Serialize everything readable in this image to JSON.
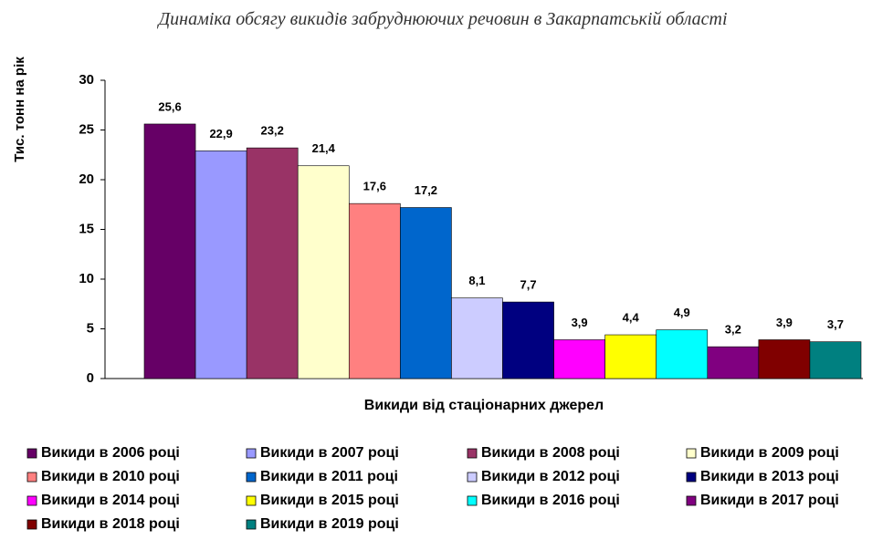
{
  "chart_data": {
    "type": "bar",
    "title": "Динаміка обсягу викидів забруднюючих речовин в Закарпатській області",
    "ylabel": "Тис. тонн на рік",
    "categories": [
      "Викиди від стаціонарних джерел"
    ],
    "ylim": [
      0,
      30
    ],
    "yticks": [
      0,
      5,
      10,
      15,
      20,
      25,
      30
    ],
    "grid": false,
    "series": [
      {
        "name": "Викиди в 2006 році",
        "color": "#660066",
        "values": [
          25.6
        ],
        "value_labels": [
          "25,6"
        ]
      },
      {
        "name": "Викиди в 2007 році",
        "color": "#9999ff",
        "values": [
          22.9
        ],
        "value_labels": [
          "22,9"
        ]
      },
      {
        "name": "Викиди в 2008 році",
        "color": "#993366",
        "values": [
          23.2
        ],
        "value_labels": [
          "23,2"
        ]
      },
      {
        "name": "Викиди в 2009 році",
        "color": "#ffffcc",
        "values": [
          21.4
        ],
        "value_labels": [
          "21,4"
        ]
      },
      {
        "name": "Викиди в 2010 році",
        "color": "#ff8080",
        "values": [
          17.6
        ],
        "value_labels": [
          "17,6"
        ]
      },
      {
        "name": "Викиди в 2011 році",
        "color": "#0066cc",
        "values": [
          17.2
        ],
        "value_labels": [
          "17,2"
        ]
      },
      {
        "name": "Викиди в 2012 році",
        "color": "#ccccff",
        "values": [
          8.1
        ],
        "value_labels": [
          "8,1"
        ]
      },
      {
        "name": "Викиди в 2013 році",
        "color": "#000080",
        "values": [
          7.7
        ],
        "value_labels": [
          "7,7"
        ]
      },
      {
        "name": "Викиди в 2014 році",
        "color": "#ff00ff",
        "values": [
          3.9
        ],
        "value_labels": [
          "3,9"
        ]
      },
      {
        "name": "Викиди в 2015 році",
        "color": "#ffff00",
        "values": [
          4.4
        ],
        "value_labels": [
          "4,4"
        ]
      },
      {
        "name": "Викиди в 2016 році",
        "color": "#00ffff",
        "values": [
          4.9
        ],
        "value_labels": [
          "4,9"
        ]
      },
      {
        "name": "Викиди в 2017 році",
        "color": "#800080",
        "values": [
          3.2
        ],
        "value_labels": [
          "3,2"
        ]
      },
      {
        "name": "Викиди в 2018 році",
        "color": "#800000",
        "values": [
          3.9
        ],
        "value_labels": [
          "3,9"
        ]
      },
      {
        "name": "Викиди в 2019 році",
        "color": "#008080",
        "values": [
          3.7
        ],
        "value_labels": [
          "3,7"
        ]
      }
    ]
  }
}
